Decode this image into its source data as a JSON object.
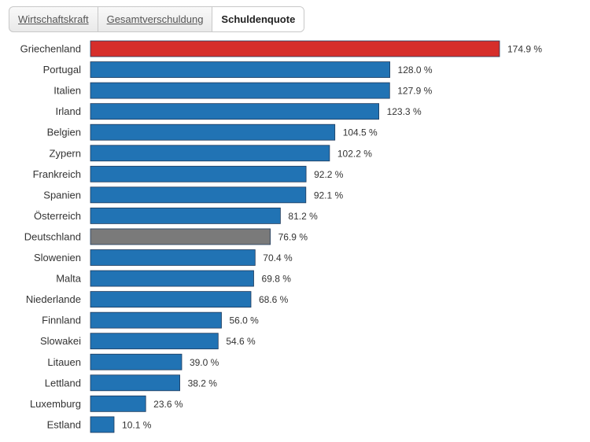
{
  "tabs": [
    {
      "label": "Wirtschaftskraft",
      "active": false
    },
    {
      "label": "Gesamtverschuldung",
      "active": false
    },
    {
      "label": "Schuldenquote",
      "active": true
    }
  ],
  "chart_data": {
    "type": "bar",
    "orientation": "horizontal",
    "title": "",
    "xlabel": "",
    "ylabel": "",
    "value_suffix": " %",
    "colors": {
      "default": "#2173b4",
      "highlight_red": "#d62e2b",
      "highlight_gray": "#7a7a7a"
    },
    "categories": [
      "Griechenland",
      "Portugal",
      "Italien",
      "Irland",
      "Belgien",
      "Zypern",
      "Frankreich",
      "Spanien",
      "Österreich",
      "Deutschland",
      "Slowenien",
      "Malta",
      "Niederlande",
      "Finnland",
      "Slowakei",
      "Litauen",
      "Lettland",
      "Luxemburg",
      "Estland"
    ],
    "values": [
      174.9,
      128.0,
      127.9,
      123.3,
      104.5,
      102.2,
      92.2,
      92.1,
      81.2,
      76.9,
      70.4,
      69.8,
      68.6,
      56.0,
      54.6,
      39.0,
      38.2,
      23.6,
      10.1
    ],
    "value_labels": [
      "174.9 %",
      "128.0 %",
      "127.9 %",
      "123.3 %",
      "104.5 %",
      "102.2 %",
      "92.2 %",
      "92.1 %",
      "81.2 %",
      "76.9 %",
      "70.4 %",
      "69.8 %",
      "68.6 %",
      "56.0 %",
      "54.6 %",
      "39.0 %",
      "38.2 %",
      "23.6 %",
      "10.1 %"
    ],
    "bar_colors": [
      "highlight_red",
      "default",
      "default",
      "default",
      "default",
      "default",
      "default",
      "default",
      "default",
      "highlight_gray",
      "default",
      "default",
      "default",
      "default",
      "default",
      "default",
      "default",
      "default",
      "default"
    ]
  }
}
